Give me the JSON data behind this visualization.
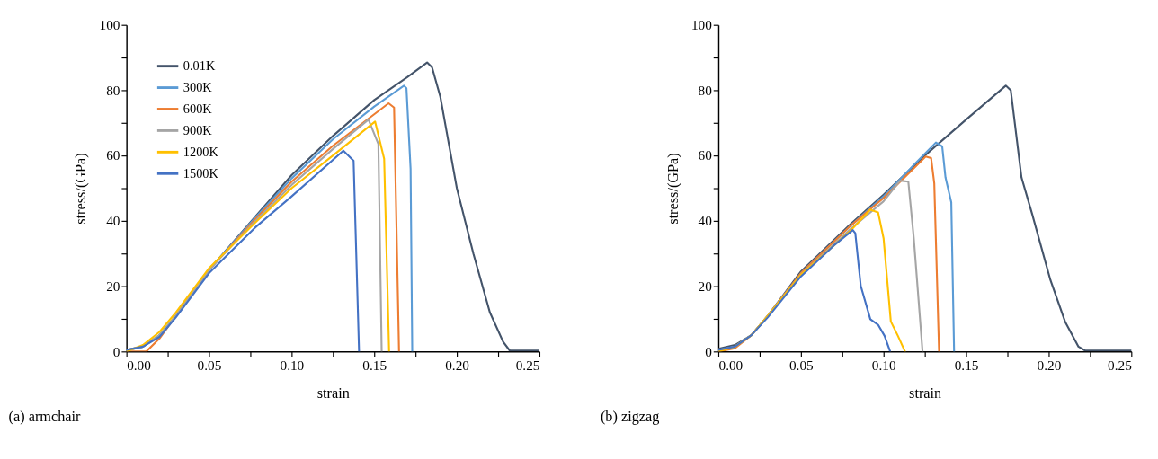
{
  "chart_data": [
    {
      "type": "line",
      "title": "(a) armchair",
      "xlabel": "strain",
      "ylabel": "stress/(GPa)",
      "legend": "top left",
      "grid": false,
      "marker": "none",
      "line_style": "solid",
      "xlim": [
        0,
        0.25
      ],
      "ylim": [
        0,
        100
      ],
      "xticks": [
        {
          "value": 0,
          "label": "0.00"
        },
        {
          "value": 0.025,
          "label": null
        },
        {
          "value": 0.05,
          "label": "0.05"
        },
        {
          "value": 0.075,
          "label": null
        },
        {
          "value": 0.1,
          "label": "0.10"
        },
        {
          "value": 0.125,
          "label": null
        },
        {
          "value": 0.15,
          "label": "0.15"
        },
        {
          "value": 0.175,
          "label": null
        },
        {
          "value": 0.2,
          "label": "0.20"
        },
        {
          "value": 0.225,
          "label": null
        },
        {
          "value": 0.25,
          "label": "0.25"
        }
      ],
      "yticks": [
        0,
        {
          "value": 10,
          "label": null
        },
        20,
        {
          "value": 30,
          "label": null
        },
        40,
        {
          "value": 50,
          "label": null
        },
        60,
        {
          "value": 70,
          "label": null
        },
        80,
        {
          "value": 90,
          "label": null
        },
        100
      ],
      "series": [
        {
          "name": "0.01K",
          "color": "#44546a",
          "x": [
            0,
            0.01,
            0.02,
            0.03,
            0.05,
            0.078,
            0.1,
            0.125,
            0.15,
            0.17,
            0.182,
            0.185,
            0.19,
            0.195,
            0.2,
            0.21,
            0.22,
            0.228,
            0.232,
            0.25
          ],
          "values": [
            0.5,
            1.5,
            5,
            11,
            25,
            41.3,
            54,
            66,
            77,
            84,
            88.5,
            87,
            78,
            64,
            50,
            30,
            12,
            3,
            0.3,
            0.3
          ]
        },
        {
          "name": "300K",
          "color": "#5b9bd5",
          "x": [
            0,
            0.01,
            0.02,
            0.03,
            0.05,
            0.078,
            0.1,
            0.125,
            0.15,
            0.168,
            0.1695,
            0.172,
            0.173
          ],
          "values": [
            0.3,
            1.5,
            5,
            11,
            25,
            41,
            53,
            65,
            75,
            81.4,
            80.6,
            55.9,
            0
          ]
        },
        {
          "name": "600K",
          "color": "#ed7d31",
          "x": [
            0,
            0.012,
            0.02,
            0.03,
            0.05,
            0.078,
            0.1,
            0.125,
            0.1587,
            0.162,
            0.165
          ],
          "values": [
            0,
            0,
            4,
            11,
            25,
            40.5,
            52,
            63,
            76,
            74.7,
            0
          ]
        },
        {
          "name": "900K",
          "color": "#a5a5a5",
          "x": [
            0,
            0.01,
            0.02,
            0.03,
            0.05,
            0.078,
            0.1,
            0.125,
            0.1465,
            0.1525,
            0.1545
          ],
          "values": [
            0.3,
            1.5,
            5,
            11,
            25,
            40,
            51,
            62,
            71,
            63.5,
            0
          ]
        },
        {
          "name": "1200K",
          "color": "#ffc000",
          "x": [
            0,
            0.01,
            0.02,
            0.03,
            0.05,
            0.078,
            0.1,
            0.125,
            0.1505,
            0.156,
            0.159
          ],
          "values": [
            0,
            2,
            6,
            12,
            25.5,
            39.5,
            50,
            60,
            70.4,
            59,
            0
          ]
        },
        {
          "name": "1500K",
          "color": "#4472c4",
          "x": [
            0,
            0.01,
            0.02,
            0.03,
            0.05,
            0.078,
            0.1,
            0.1313,
            0.1375,
            0.1408
          ],
          "values": [
            0.5,
            1.5,
            4.5,
            10.5,
            24,
            38,
            47.5,
            61.5,
            58.4,
            0
          ]
        }
      ]
    },
    {
      "type": "line",
      "title": "(b) zigzag",
      "xlabel": "strain",
      "ylabel": "stress/(GPa)",
      "legend": "top left",
      "grid": false,
      "marker": "none",
      "line_style": "solid",
      "xlim": [
        0,
        0.25
      ],
      "ylim": [
        0,
        100
      ],
      "xticks": [
        {
          "value": 0,
          "label": "0.00"
        },
        {
          "value": 0.025,
          "label": null
        },
        {
          "value": 0.05,
          "label": "0.05"
        },
        {
          "value": 0.075,
          "label": null
        },
        {
          "value": 0.1,
          "label": "0.10"
        },
        {
          "value": 0.125,
          "label": null
        },
        {
          "value": 0.15,
          "label": "0.15"
        },
        {
          "value": 0.175,
          "label": null
        },
        {
          "value": 0.2,
          "label": "0.20"
        },
        {
          "value": 0.225,
          "label": null
        },
        {
          "value": 0.25,
          "label": "0.25"
        }
      ],
      "yticks": [
        0,
        {
          "value": 10,
          "label": null
        },
        20,
        {
          "value": 30,
          "label": null
        },
        40,
        {
          "value": 50,
          "label": null
        },
        60,
        {
          "value": 70,
          "label": null
        },
        80,
        {
          "value": 90,
          "label": null
        },
        100
      ],
      "series": [
        {
          "name": "0.01K",
          "color": "#44546a",
          "x": [
            0,
            0.01,
            0.02,
            0.03,
            0.05,
            0.08,
            0.1,
            0.125,
            0.15,
            0.174,
            0.177,
            0.1835,
            0.19,
            0.201,
            0.21,
            0.218,
            0.222,
            0.25
          ],
          "values": [
            0.8,
            2,
            5,
            11,
            24.5,
            39,
            48,
            60,
            71,
            81.4,
            80,
            53.3,
            42,
            21.9,
            9,
            1.5,
            0.3,
            0.3
          ]
        },
        {
          "name": "300K",
          "color": "#5b9bd5",
          "x": [
            0,
            0.01,
            0.02,
            0.03,
            0.05,
            0.08,
            0.1,
            0.12,
            0.1317,
            0.1355,
            0.1375,
            0.141,
            0.1427
          ],
          "values": [
            0.5,
            1.5,
            5,
            11,
            24,
            38.5,
            47.5,
            58,
            64,
            62.8,
            53.3,
            45.7,
            0
          ]
        },
        {
          "name": "600K",
          "color": "#ed7d31",
          "x": [
            0,
            0.01,
            0.02,
            0.03,
            0.05,
            0.08,
            0.1,
            0.1255,
            0.1288,
            0.1307,
            0.1336
          ],
          "values": [
            0,
            1,
            5,
            11,
            24,
            38.5,
            47,
            59.7,
            59.2,
            51.5,
            0
          ]
        },
        {
          "name": "900K",
          "color": "#a5a5a5",
          "x": [
            0,
            0.01,
            0.02,
            0.03,
            0.05,
            0.08,
            0.1,
            0.11,
            0.115,
            0.1183,
            0.1236
          ],
          "values": [
            0.3,
            1.5,
            5,
            11,
            23.5,
            37.5,
            46,
            52.3,
            52,
            34.7,
            0
          ]
        },
        {
          "name": "1200K",
          "color": "#ffc000",
          "x": [
            0,
            0.01,
            0.02,
            0.03,
            0.05,
            0.08,
            0.092,
            0.0967,
            0.1,
            0.1044,
            0.1087,
            0.113
          ],
          "values": [
            0,
            1.5,
            5,
            11,
            23.5,
            37,
            43.4,
            42.6,
            34.7,
            9.2,
            4.8,
            0
          ]
        },
        {
          "name": "1500K",
          "color": "#4472c4",
          "x": [
            0,
            0.01,
            0.02,
            0.03,
            0.05,
            0.07,
            0.0814,
            0.0829,
            0.0862,
            0.092,
            0.0967,
            0.1006,
            0.104
          ],
          "values": [
            0.5,
            1.5,
            5,
            10.5,
            23,
            32.5,
            37.2,
            36.2,
            20.1,
            9.9,
            8.2,
            4.8,
            0
          ]
        }
      ]
    }
  ]
}
